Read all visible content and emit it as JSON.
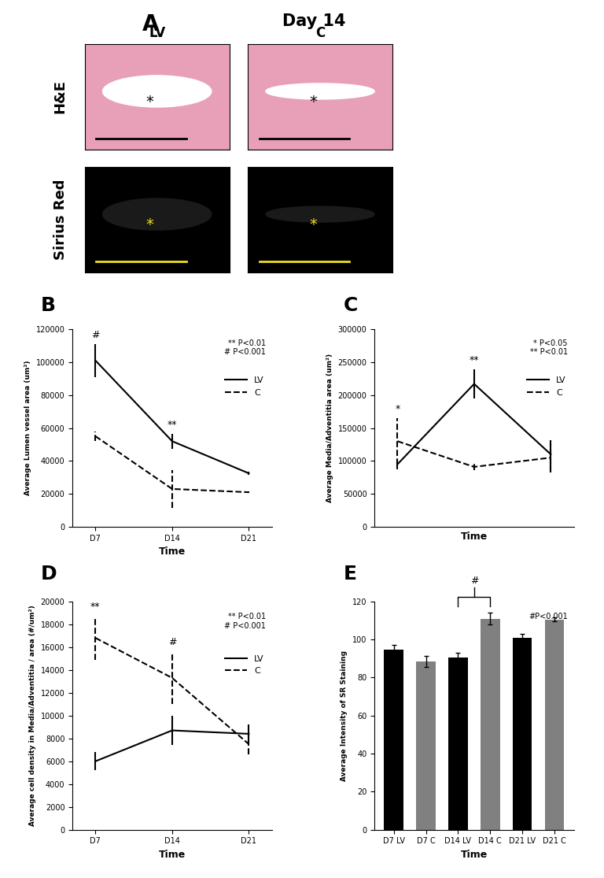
{
  "panel_A": {
    "label": "A",
    "title": "Day 14",
    "columns": [
      "LV",
      "C"
    ],
    "rows": [
      "H&E",
      "Sirius Red"
    ],
    "marker": "*"
  },
  "chart_data": [
    {
      "panel": "B",
      "type": "line",
      "categories": [
        "D7",
        "D14",
        "D21"
      ],
      "series": [
        {
          "name": "LV",
          "color": "#000000",
          "line_style": "solid",
          "values": [
            101000,
            52000,
            32500
          ],
          "errors": [
            10000,
            4500,
            1000
          ]
        },
        {
          "name": "C",
          "color": "#000000",
          "line_style": "dashed",
          "values": [
            55000,
            23000,
            21000
          ],
          "errors": [
            3000,
            11500,
            500
          ]
        }
      ],
      "ylim": [
        0,
        120000
      ],
      "yticks": [
        0,
        20000,
        40000,
        60000,
        80000,
        100000,
        120000
      ],
      "xlabel": "Time",
      "ylabel": "Average Lumen vessel area (um²)",
      "annotations": [
        {
          "text": "#",
          "index": 0
        },
        {
          "text": "**",
          "index": 1
        }
      ],
      "notes": [
        "** P<0.01",
        "# P<0.001"
      ],
      "legend": "upper right"
    },
    {
      "panel": "C",
      "type": "line",
      "categories": [
        null,
        null,
        null
      ],
      "tick_labels": "y",
      "series": [
        {
          "name": "LV",
          "color": "#000000",
          "line_style": "solid",
          "values": [
            95000,
            217000,
            110000
          ],
          "errors": [
            8000,
            22000,
            22000
          ]
        },
        {
          "name": "C",
          "color": "#000000",
          "line_style": "dashed",
          "values": [
            130000,
            91000,
            105000
          ],
          "errors": [
            35000,
            5000,
            22000
          ]
        }
      ],
      "ylim": [
        0,
        300000
      ],
      "yticks": [
        0,
        50000,
        100000,
        150000,
        200000,
        250000,
        300000
      ],
      "xlabel": "Time",
      "ylabel": "Average Media/Adventitia area (um²)",
      "annotations": [
        {
          "text": "*",
          "index": 0
        },
        {
          "text": "**",
          "index": 1
        }
      ],
      "notes": [
        "* P<0.05",
        "** P<0.01"
      ],
      "legend": "upper right"
    },
    {
      "panel": "D",
      "type": "line",
      "categories": [
        "D7",
        "D14",
        "D21"
      ],
      "series": [
        {
          "name": "LV",
          "color": "#000000",
          "line_style": "solid",
          "values": [
            6000,
            8700,
            8400
          ],
          "errors": [
            800,
            1300,
            800
          ]
        },
        {
          "name": "C",
          "color": "#000000",
          "line_style": "dashed",
          "values": [
            16800,
            13300,
            7500
          ],
          "errors": [
            1900,
            2300,
            900
          ]
        }
      ],
      "ylim": [
        0,
        20000
      ],
      "yticks": [
        0,
        2000,
        4000,
        6000,
        8000,
        10000,
        12000,
        14000,
        16000,
        18000,
        20000
      ],
      "xlabel": "Time",
      "ylabel": "Average cell density in Media/Adventitia / area (#/um²)",
      "annotations": [
        {
          "text": "**",
          "index": 0
        },
        {
          "text": "#",
          "index": 1
        }
      ],
      "notes": [
        "** P<0.01",
        "# P<0.001"
      ],
      "legend": "upper right"
    },
    {
      "panel": "E",
      "type": "bar",
      "categories": [
        "D7 LV",
        "D7 C",
        "D14 LV",
        "D14 C",
        "D21 LV",
        "D21 C"
      ],
      "values": [
        94.5,
        88.5,
        90.5,
        111,
        101,
        110.5
      ],
      "errors": [
        2.5,
        3,
        2.5,
        3,
        2,
        1
      ],
      "colors": [
        "#000000",
        "#808080",
        "#000000",
        "#808080",
        "#000000",
        "#808080"
      ],
      "ylim": [
        0,
        120
      ],
      "yticks": [
        0,
        20,
        40,
        60,
        80,
        100,
        120
      ],
      "xlabel": "Time",
      "ylabel": "Average Intensity of SR Staining",
      "annotations": [
        {
          "text": "#",
          "between": [
            2,
            3
          ]
        }
      ],
      "notes": [
        "#P<0.001"
      ]
    }
  ]
}
